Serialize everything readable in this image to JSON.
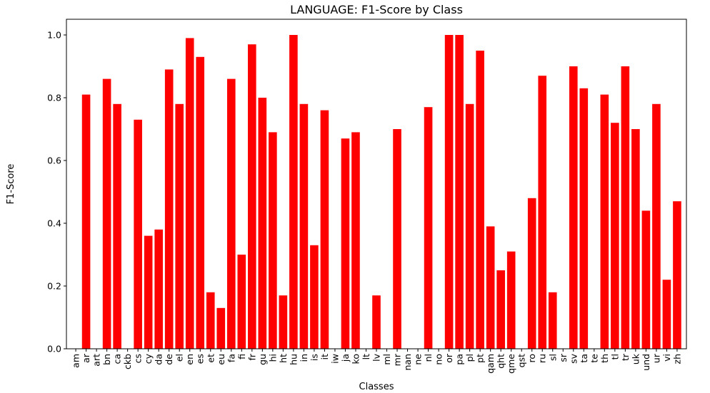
{
  "chart_data": {
    "type": "bar",
    "title": "LANGUAGE: F1-Score by Class",
    "xlabel": "Classes",
    "ylabel": "F1-Score",
    "ylim": [
      0,
      1.05
    ],
    "yticks": [
      "0.0",
      "0.2",
      "0.4",
      "0.6",
      "0.8",
      "1.0"
    ],
    "ytick_values": [
      0,
      0.2,
      0.4,
      0.6,
      0.8,
      1.0
    ],
    "bar_color": "#ff0000",
    "grid": false,
    "categories": [
      "am",
      "ar",
      "art",
      "bn",
      "ca",
      "ckb",
      "cs",
      "cy",
      "da",
      "de",
      "el",
      "en",
      "es",
      "et",
      "eu",
      "fa",
      "fi",
      "fr",
      "gu",
      "hi",
      "ht",
      "hu",
      "in",
      "is",
      "it",
      "iw",
      "ja",
      "ko",
      "lt",
      "lv",
      "ml",
      "mr",
      "nan",
      "ne",
      "nl",
      "no",
      "or",
      "pa",
      "pl",
      "pt",
      "qam",
      "qht",
      "qme",
      "qst",
      "ro",
      "ru",
      "sl",
      "sr",
      "sv",
      "ta",
      "te",
      "th",
      "tl",
      "tr",
      "uk",
      "und",
      "ur",
      "vi",
      "zh"
    ],
    "values": [
      0,
      0.81,
      0,
      0.86,
      0.78,
      0,
      0.73,
      0.36,
      0.38,
      0.89,
      0.78,
      0.99,
      0.93,
      0.18,
      0.13,
      0.86,
      0.3,
      0.97,
      0.8,
      0.69,
      0.17,
      1.0,
      0.78,
      0.33,
      0.76,
      0,
      0.67,
      0.69,
      0,
      0.17,
      0,
      0.7,
      0,
      0,
      0.77,
      0,
      1.0,
      1.0,
      0.78,
      0.95,
      0.39,
      0.25,
      0.31,
      0,
      0.48,
      0.87,
      0.18,
      0,
      0.9,
      0.83,
      0,
      0.81,
      0.72,
      0.9,
      0.7,
      0.44,
      0.78,
      0.22,
      0.47
    ]
  }
}
